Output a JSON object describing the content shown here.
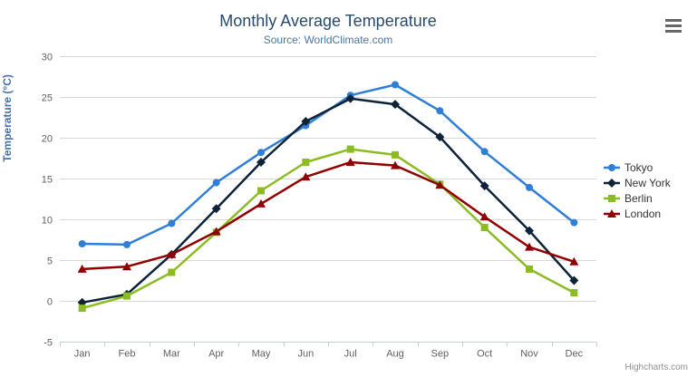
{
  "header": {
    "title": "Monthly Average Temperature",
    "subtitle": "Source: WorldClimate.com"
  },
  "chart_data": {
    "type": "line",
    "categories": [
      "Jan",
      "Feb",
      "Mar",
      "Apr",
      "May",
      "Jun",
      "Jul",
      "Aug",
      "Sep",
      "Oct",
      "Nov",
      "Dec"
    ],
    "series": [
      {
        "name": "Tokyo",
        "color": "#2f7ed8",
        "marker": "circle",
        "values": [
          7.0,
          6.9,
          9.5,
          14.5,
          18.2,
          21.5,
          25.2,
          26.5,
          23.3,
          18.3,
          13.9,
          9.6
        ]
      },
      {
        "name": "New York",
        "color": "#0d233a",
        "marker": "diamond",
        "values": [
          -0.2,
          0.8,
          5.7,
          11.3,
          17.0,
          22.0,
          24.8,
          24.1,
          20.1,
          14.1,
          8.6,
          2.5
        ]
      },
      {
        "name": "Berlin",
        "color": "#8bbc21",
        "marker": "square",
        "values": [
          -0.9,
          0.6,
          3.5,
          8.4,
          13.5,
          17.0,
          18.6,
          17.9,
          14.3,
          9.0,
          3.9,
          1.0
        ]
      },
      {
        "name": "London",
        "color": "#910000",
        "marker": "triangle",
        "values": [
          3.9,
          4.2,
          5.7,
          8.5,
          11.9,
          15.2,
          17.0,
          16.6,
          14.2,
          10.3,
          6.6,
          4.8
        ]
      }
    ],
    "title": "Monthly Average Temperature",
    "subtitle": "Source: WorldClimate.com",
    "xlabel": "",
    "ylabel": "Temperature (°C)",
    "ylim": [
      -5,
      30
    ],
    "ytick_step": 5,
    "grid": true,
    "legend_position": "right",
    "colors": {
      "grid_line": "#d8d8d8",
      "axis_line": "#c0d0e0",
      "tick_label": "#606060",
      "title": "#274b6d",
      "subtitle": "#4d759e",
      "axis_title": "#4572a7"
    }
  },
  "credits": {
    "label": "Highcharts.com"
  }
}
